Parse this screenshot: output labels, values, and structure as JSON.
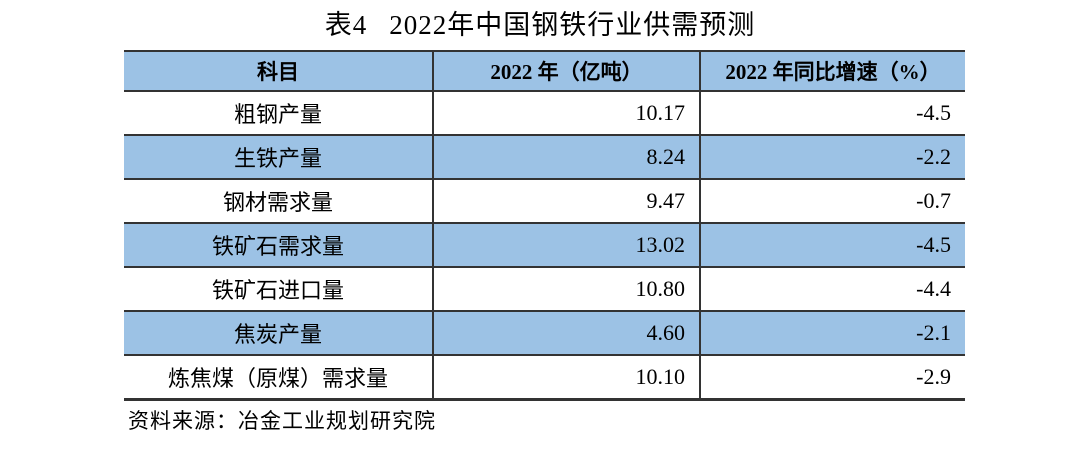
{
  "header": {
    "title_label": "表4",
    "title_text": "2022年中国钢铁行业供需预测"
  },
  "table": {
    "columns": [
      "科目",
      "2022 年（亿吨）",
      "2022 年同比增速（%）"
    ],
    "rows": [
      {
        "subject": "粗钢产量",
        "value": "10.17",
        "growth": "-4.5"
      },
      {
        "subject": "生铁产量",
        "value": "8.24",
        "growth": "-2.2"
      },
      {
        "subject": "钢材需求量",
        "value": "9.47",
        "growth": "-0.7"
      },
      {
        "subject": "铁矿石需求量",
        "value": "13.02",
        "growth": "-4.5"
      },
      {
        "subject": "铁矿石进口量",
        "value": "10.80",
        "growth": "-4.4"
      },
      {
        "subject": "焦炭产量",
        "value": "4.60",
        "growth": "-2.1"
      },
      {
        "subject": "炼焦煤（原煤）需求量",
        "value": "10.10",
        "growth": "-2.9"
      }
    ]
  },
  "footer": {
    "source_note": "资料来源：冶金工业规划研究院"
  },
  "colors": {
    "header_bg": "#9CC2E5",
    "stripe_bg": "#9CC2E5",
    "border": "#333333",
    "text": "#000000"
  }
}
